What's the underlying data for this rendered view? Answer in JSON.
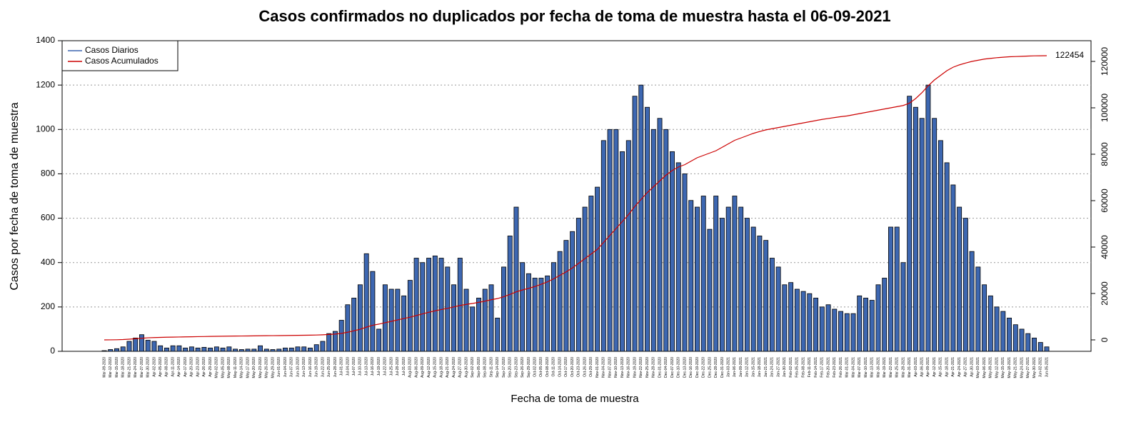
{
  "chart_data": {
    "type": "bar",
    "title": "Casos confirmados no duplicados por fecha de toma de muestra hasta el 06-09-2021",
    "x_label": "Fecha de toma de muestra",
    "y_label": "Casos por fecha de toma de muestra",
    "categories": [
      "Mar-09-2020",
      "Mar-12-2020",
      "Mar-15-2020",
      "Mar-18-2020",
      "Mar-21-2020",
      "Mar-24-2020",
      "Mar-27-2020",
      "Mar-30-2020",
      "Apr-02-2020",
      "Apr-05-2020",
      "Apr-08-2020",
      "Apr-11-2020",
      "Apr-14-2020",
      "Apr-17-2020",
      "Apr-20-2020",
      "Apr-23-2020",
      "Apr-26-2020",
      "Apr-29-2020",
      "May-02-2020",
      "May-05-2020",
      "May-08-2020",
      "May-11-2020",
      "May-14-2020",
      "May-17-2020",
      "May-20-2020",
      "May-23-2020",
      "May-26-2020",
      "May-29-2020",
      "Jun-01-2020",
      "Jun-04-2020",
      "Jun-07-2020",
      "Jun-10-2020",
      "Jun-13-2020",
      "Jun-16-2020",
      "Jun-19-2020",
      "Jun-22-2020",
      "Jun-25-2020",
      "Jun-28-2020",
      "Jul-01-2020",
      "Jul-04-2020",
      "Jul-07-2020",
      "Jul-10-2020",
      "Jul-13-2020",
      "Jul-16-2020",
      "Jul-19-2020",
      "Jul-22-2020",
      "Jul-25-2020",
      "Jul-28-2020",
      "Jul-31-2020",
      "Aug-03-2020",
      "Aug-06-2020",
      "Aug-09-2020",
      "Aug-12-2020",
      "Aug-15-2020",
      "Aug-18-2020",
      "Aug-21-2020",
      "Aug-24-2020",
      "Aug-27-2020",
      "Aug-30-2020",
      "Sep-02-2020",
      "Sep-05-2020",
      "Sep-08-2020",
      "Sep-11-2020",
      "Sep-14-2020",
      "Sep-17-2020",
      "Sep-20-2020",
      "Sep-23-2020",
      "Sep-26-2020",
      "Sep-29-2020",
      "Oct-02-2020",
      "Oct-05-2020",
      "Oct-08-2020",
      "Oct-11-2020",
      "Oct-14-2020",
      "Oct-17-2020",
      "Oct-20-2020",
      "Oct-23-2020",
      "Oct-26-2020",
      "Oct-29-2020",
      "Nov-01-2020",
      "Nov-04-2020",
      "Nov-07-2020",
      "Nov-10-2020",
      "Nov-13-2020",
      "Nov-16-2020",
      "Nov-19-2020",
      "Nov-22-2020",
      "Nov-25-2020",
      "Nov-28-2020",
      "Dec-01-2020",
      "Dec-04-2020",
      "Dec-07-2020",
      "Dec-10-2020",
      "Dec-13-2020",
      "Dec-16-2020",
      "Dec-19-2020",
      "Dec-22-2020",
      "Dec-25-2020",
      "Dec-28-2020",
      "Dec-31-2020",
      "Jan-03-2021",
      "Jan-06-2021",
      "Jan-09-2021",
      "Jan-12-2021",
      "Jan-15-2021",
      "Jan-18-2021",
      "Jan-21-2021",
      "Jan-24-2021",
      "Jan-27-2021",
      "Jan-30-2021",
      "Feb-02-2021",
      "Feb-05-2021",
      "Feb-08-2021",
      "Feb-11-2021",
      "Feb-14-2021",
      "Feb-17-2021",
      "Feb-20-2021",
      "Feb-23-2021",
      "Feb-26-2021",
      "Mar-01-2021",
      "Mar-04-2021",
      "Mar-07-2021",
      "Mar-10-2021",
      "Mar-13-2021",
      "Mar-16-2021",
      "Mar-19-2021",
      "Mar-22-2021",
      "Mar-25-2021",
      "Mar-28-2021",
      "Mar-31-2021",
      "Apr-03-2021",
      "Apr-06-2021",
      "Apr-09-2021",
      "Apr-12-2021",
      "Apr-15-2021",
      "Apr-18-2021",
      "Apr-21-2021",
      "Apr-24-2021",
      "Apr-27-2021",
      "Apr-30-2021",
      "May-03-2021",
      "May-06-2021",
      "May-09-2021",
      "May-12-2021",
      "May-15-2021",
      "May-18-2021",
      "May-21-2021",
      "May-24-2021",
      "May-27-2021",
      "May-30-2021",
      "Jun-02-2021",
      "Jun-05-2021"
    ],
    "series": [
      {
        "name": "Casos Diarios",
        "color": "#3d67b1",
        "values": [
          3,
          8,
          12,
          20,
          45,
          60,
          75,
          50,
          45,
          25,
          15,
          25,
          25,
          15,
          20,
          15,
          18,
          15,
          20,
          15,
          20,
          10,
          8,
          10,
          10,
          25,
          10,
          8,
          10,
          15,
          15,
          20,
          20,
          15,
          30,
          45,
          80,
          90,
          140,
          210,
          240,
          300,
          440,
          360,
          100,
          300,
          280,
          280,
          250,
          320,
          420,
          400,
          420,
          430,
          420,
          380,
          300,
          420,
          280,
          200,
          240,
          280,
          300,
          150,
          380,
          520,
          650,
          400,
          350,
          330,
          330,
          340,
          400,
          450,
          500,
          540,
          600,
          650,
          700,
          740,
          950,
          1000,
          1000,
          900,
          950,
          1150,
          1200,
          1100,
          1000,
          1050,
          1000,
          900,
          850,
          800,
          680,
          650,
          700,
          550,
          700,
          600,
          650,
          700,
          650,
          600,
          560,
          520,
          500,
          420,
          380,
          300,
          310,
          280,
          270,
          260,
          240,
          200,
          210,
          190,
          180,
          170,
          170,
          250,
          240,
          230,
          300,
          330,
          560,
          560,
          400,
          1150,
          1100,
          1050,
          1200,
          1050,
          950,
          850,
          750,
          650,
          600,
          450,
          380,
          300,
          250,
          200,
          180,
          150,
          120,
          100,
          80,
          60,
          40,
          20
        ]
      },
      {
        "name": "Casos Acumulados",
        "color": "#cc0000",
        "axis": "y2",
        "values": [
          0,
          20,
          60,
          150,
          300,
          500,
          700,
          900,
          1000,
          1080,
          1150,
          1200,
          1250,
          1300,
          1350,
          1400,
          1450,
          1500,
          1540,
          1580,
          1620,
          1650,
          1680,
          1700,
          1720,
          1760,
          1800,
          1820,
          1850,
          1880,
          1920,
          1960,
          2000,
          2050,
          2100,
          2200,
          2350,
          2500,
          2800,
          3300,
          3900,
          4600,
          5500,
          6300,
          6800,
          7400,
          8000,
          8600,
          9200,
          9800,
          10500,
          11200,
          11900,
          12500,
          13100,
          13600,
          14200,
          14800,
          15300,
          15700,
          16200,
          16700,
          17300,
          17800,
          18600,
          19600,
          20700,
          21500,
          22200,
          23000,
          24000,
          25000,
          26300,
          27800,
          29300,
          31000,
          33000,
          35000,
          37000,
          39000,
          42000,
          45000,
          48000,
          51000,
          54000,
          57500,
          60500,
          63500,
          66000,
          68500,
          71000,
          73000,
          74500,
          75500,
          77000,
          78500,
          79500,
          80500,
          81500,
          83000,
          84500,
          86000,
          87000,
          88000,
          89000,
          89800,
          90500,
          91000,
          91500,
          92000,
          92500,
          93000,
          93500,
          94000,
          94500,
          95000,
          95400,
          95800,
          96200,
          96500,
          97000,
          97500,
          98000,
          98500,
          99000,
          99500,
          100000,
          100500,
          101000,
          102000,
          104000,
          106500,
          109500,
          112000,
          114000,
          116000,
          117500,
          118500,
          119300,
          120000,
          120500,
          121000,
          121300,
          121600,
          121800,
          122000,
          122100,
          122200,
          122300,
          122400,
          122430,
          122454
        ]
      }
    ],
    "ylim": [
      0,
      1400
    ],
    "yticks": [
      0,
      200,
      400,
      600,
      800,
      1000,
      1200,
      1400
    ],
    "y2lim": [
      -4923,
      128923
    ],
    "y2ticks": [
      0,
      20000,
      40000,
      60000,
      80000,
      100000,
      120000
    ],
    "grid": true,
    "legend": "top-left"
  }
}
